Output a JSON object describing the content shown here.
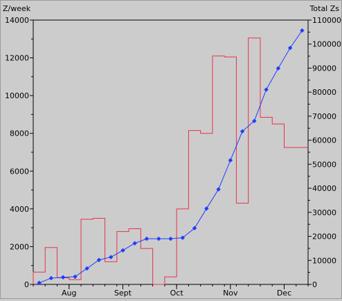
{
  "chart_data": {
    "type": "line",
    "left_axis": {
      "label": "Z/week",
      "ylim": [
        0,
        14000
      ],
      "ticks": [
        "0",
        "2000",
        "4000",
        "6000",
        "8000",
        "10000",
        "12000",
        "14000"
      ]
    },
    "right_axis": {
      "label": "Total Zs",
      "ylim": [
        0,
        110000
      ],
      "ticks": [
        "0",
        "10000",
        "20000",
        "30000",
        "40000",
        "50000",
        "60000",
        "70000",
        "80000",
        "90000",
        "100000",
        "110000"
      ]
    },
    "x_ticks": [
      {
        "label": "Aug",
        "week": 3
      },
      {
        "label": "Sept",
        "week": 7.5
      },
      {
        "label": "Oct",
        "week": 12
      },
      {
        "label": "Nov",
        "week": 16.5
      },
      {
        "label": "Dec",
        "week": 21
      }
    ],
    "x_range": [
      0,
      23
    ],
    "series": [
      {
        "axis": "left",
        "style": "step",
        "color": "#e8324a",
        "values": [
          650,
          1950,
          350,
          250,
          3450,
          3500,
          1200,
          2800,
          2950,
          1900,
          0,
          400,
          4000,
          8150,
          8000,
          12100,
          12050,
          4300,
          13050,
          8850,
          8500,
          7250,
          7250
        ]
      },
      {
        "axis": "right",
        "style": "line-markers",
        "color": "#1e3cff",
        "x": [
          0.5,
          1.5,
          2.5,
          3.5,
          4.5,
          5.5,
          6.5,
          7.5,
          8.5,
          9.5,
          10.5,
          11.5,
          12.5,
          13.5,
          14.5,
          15.5,
          16.5,
          17.5,
          18.5,
          19.5,
          20.5,
          21.5,
          22.5
        ],
        "values": [
          650,
          2600,
          2950,
          3200,
          6650,
          10150,
          11350,
          14150,
          17100,
          19000,
          19000,
          19000,
          19400,
          23400,
          31550,
          39550,
          51650,
          63700,
          68000,
          81050,
          89900,
          98400,
          105650
        ]
      }
    ]
  }
}
